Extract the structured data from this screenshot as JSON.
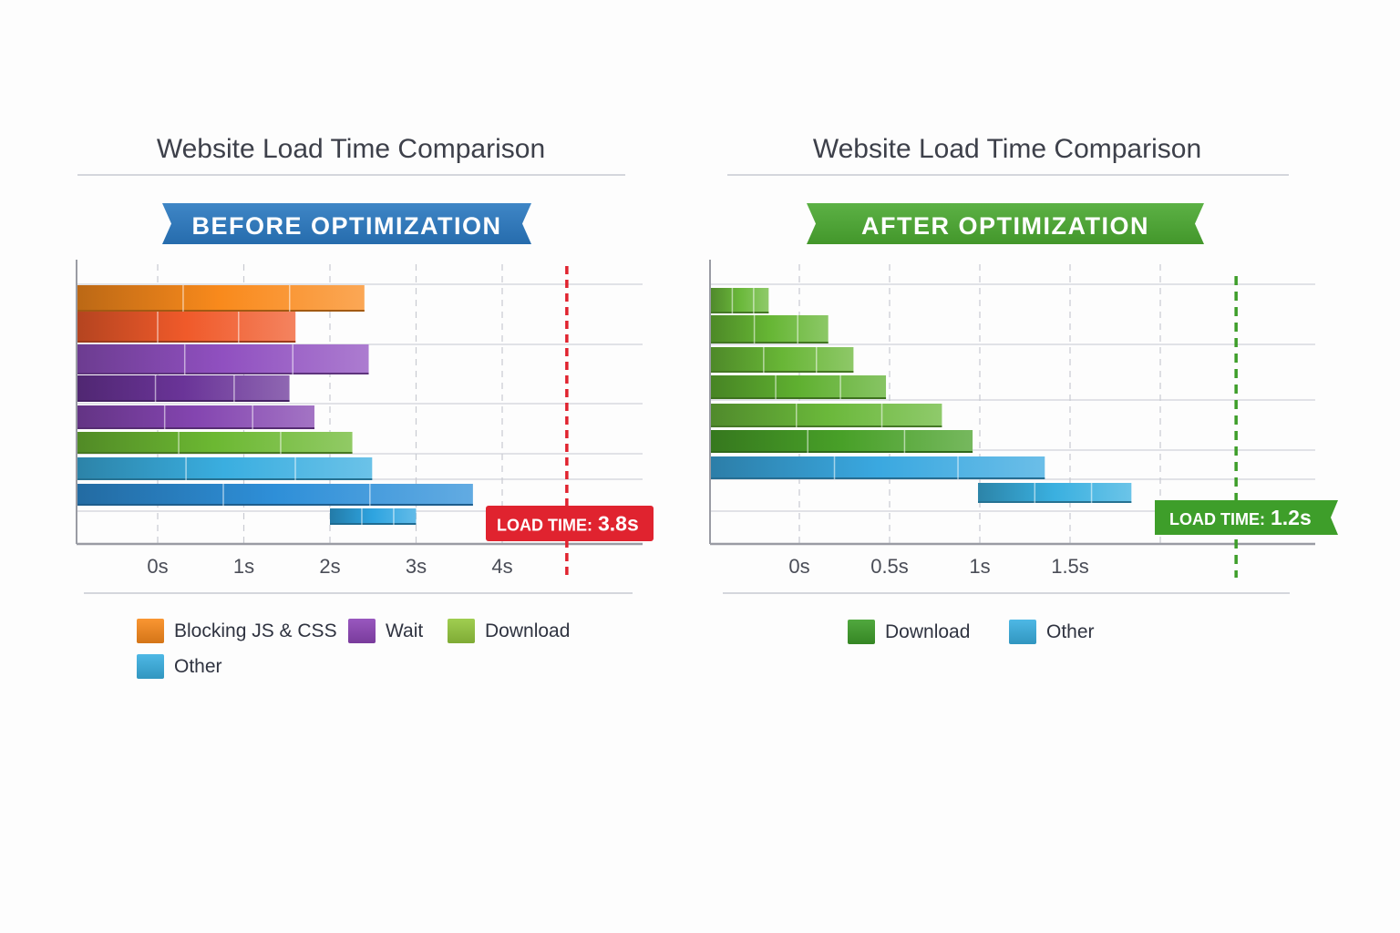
{
  "chart_data": [
    {
      "type": "bar",
      "orientation": "horizontal-waterfall",
      "title": "Website Load Time Comparison",
      "banner": "BEFORE OPTIMIZATION",
      "banner_color": "#2a78c0",
      "xlabel": "",
      "ylabel": "",
      "x_ticks": [
        0,
        1,
        2,
        3,
        4
      ],
      "x_tick_labels": [
        "0s",
        "1s",
        "2s",
        "3s",
        "4s"
      ],
      "xlim": [
        -0.94,
        5.6
      ],
      "grid": true,
      "series_colors": {
        "Blocking JS & CSS": "#f98a1c",
        "Blocking JS & CSS (alt)": "#f05a2a",
        "Wait": "#8e45b8",
        "Download": "#7cc03a",
        "Other": "#3ab0e2"
      },
      "bars": [
        {
          "series": "Blocking JS & CSS",
          "color": "#f98a1c",
          "start": -0.94,
          "end": 2.4
        },
        {
          "series": "Blocking JS & CSS",
          "color": "#f05a2a",
          "start": -0.94,
          "end": 1.6
        },
        {
          "series": "Wait",
          "color": "#9050c0",
          "start": -0.94,
          "end": 2.45
        },
        {
          "series": "Wait",
          "color": "#6a3498",
          "start": -0.94,
          "end": 1.53
        },
        {
          "series": "Wait",
          "color": "#8445b0",
          "start": -0.94,
          "end": 1.82
        },
        {
          "series": "Download",
          "color": "#6cb832",
          "start": -0.94,
          "end": 2.26
        },
        {
          "series": "Other",
          "color": "#3aaee0",
          "start": -0.94,
          "end": 2.49
        },
        {
          "series": "Other",
          "color": "#2e8fd8",
          "start": -0.94,
          "end": 3.66
        },
        {
          "series": "Other",
          "color": "#2ea4e0",
          "start": 2.0,
          "end": 3.0
        }
      ],
      "load_time_marker": {
        "label_prefix": "LOAD TIME:",
        "label_value": "3.8s",
        "color": "#e0232f",
        "x": 4.75
      },
      "legend": [
        {
          "label": "Blocking JS & CSS",
          "color": "#f98a1c"
        },
        {
          "label": "Wait",
          "color": "#8e45b8"
        },
        {
          "label": "Download",
          "color": "#95c93e"
        },
        {
          "label": "Other",
          "color": "#3ab0e2"
        }
      ],
      "legend_position": "bottom"
    },
    {
      "type": "bar",
      "orientation": "horizontal-waterfall",
      "title": "Website Load Time Comparison",
      "banner": "AFTER OPTIMIZATION",
      "banner_color": "#4aa830",
      "xlabel": "",
      "ylabel": "",
      "x_ticks": [
        0,
        0.5,
        1,
        1.5,
        2
      ],
      "x_tick_labels": [
        "0s",
        "0.5s",
        "1s",
        "1.5s",
        ""
      ],
      "xlim": [
        -0.49,
        2.86
      ],
      "grid": true,
      "bars": [
        {
          "series": "Download",
          "color": "#6ab83a",
          "start": -0.49,
          "end": -0.17
        },
        {
          "series": "Download",
          "color": "#66b634",
          "start": -0.49,
          "end": 0.16
        },
        {
          "series": "Download",
          "color": "#68b636",
          "start": -0.49,
          "end": 0.3
        },
        {
          "series": "Download",
          "color": "#5fb030",
          "start": -0.49,
          "end": 0.48
        },
        {
          "series": "Download",
          "color": "#6ab83a",
          "start": -0.49,
          "end": 0.79
        },
        {
          "series": "Download",
          "color": "#48a028",
          "start": -0.49,
          "end": 0.96
        },
        {
          "series": "Other",
          "color": "#3aa8e0",
          "start": -0.49,
          "end": 1.36
        },
        {
          "series": "Other",
          "color": "#3ab0e0",
          "start": 0.99,
          "end": 1.84
        }
      ],
      "load_time_marker": {
        "label_prefix": "LOAD TIME:",
        "label_value": "1.2s",
        "color": "#3e9e2a",
        "x": 2.42
      },
      "legend": [
        {
          "label": "Download",
          "color": "#3e9e2a"
        },
        {
          "label": "Other",
          "color": "#3ab0e2"
        }
      ],
      "legend_position": "bottom"
    }
  ]
}
